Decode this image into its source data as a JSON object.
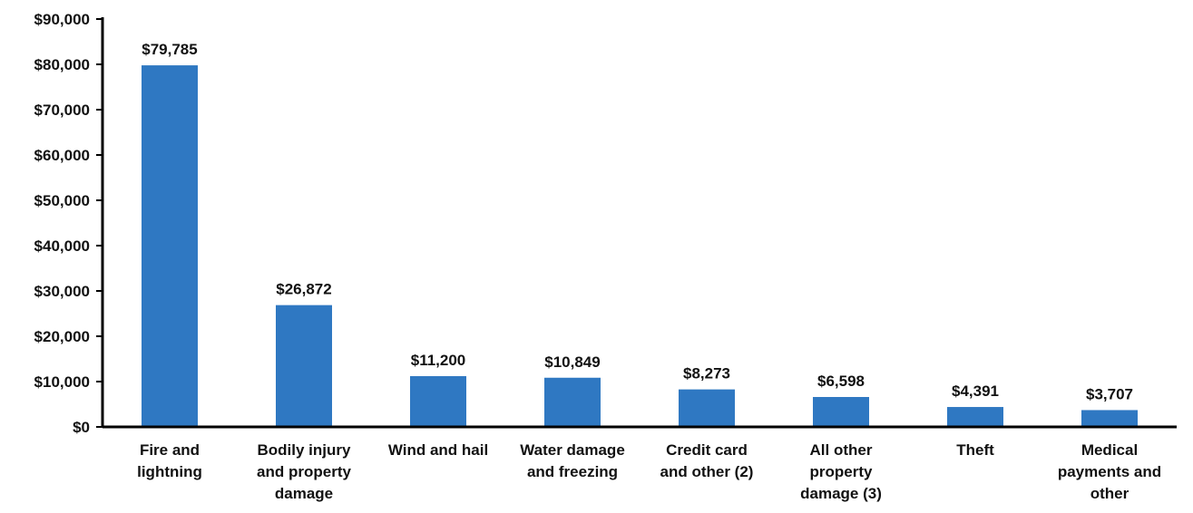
{
  "chart_data": {
    "type": "bar",
    "categories": [
      "Fire and lightning",
      "Bodily injury and property damage",
      "Wind and hail",
      "Water damage and freezing",
      "Credit card and other (2)",
      "All other property damage (3)",
      "Theft",
      "Medical payments and other"
    ],
    "values": [
      79785,
      26872,
      11200,
      10849,
      8273,
      6598,
      4391,
      3707
    ],
    "value_labels": [
      "$79,785",
      "$26,872",
      "$11,200",
      "$10,849",
      "$8,273",
      "$6,598",
      "$4,391",
      "$3,707"
    ],
    "color": "#2f78c2",
    "ylim": [
      0,
      90000
    ],
    "yticks": [
      {
        "value": 0,
        "label": "$0"
      },
      {
        "value": 10000,
        "label": "$10,000"
      },
      {
        "value": 20000,
        "label": "$20,000"
      },
      {
        "value": 30000,
        "label": "$30,000"
      },
      {
        "value": 40000,
        "label": "$40,000"
      },
      {
        "value": 50000,
        "label": "$50,000"
      },
      {
        "value": 60000,
        "label": "$60,000"
      },
      {
        "value": 70000,
        "label": "$70,000"
      },
      {
        "value": 80000,
        "label": "$80,000"
      },
      {
        "value": 90000,
        "label": "$90,000"
      }
    ],
    "grid": false
  }
}
